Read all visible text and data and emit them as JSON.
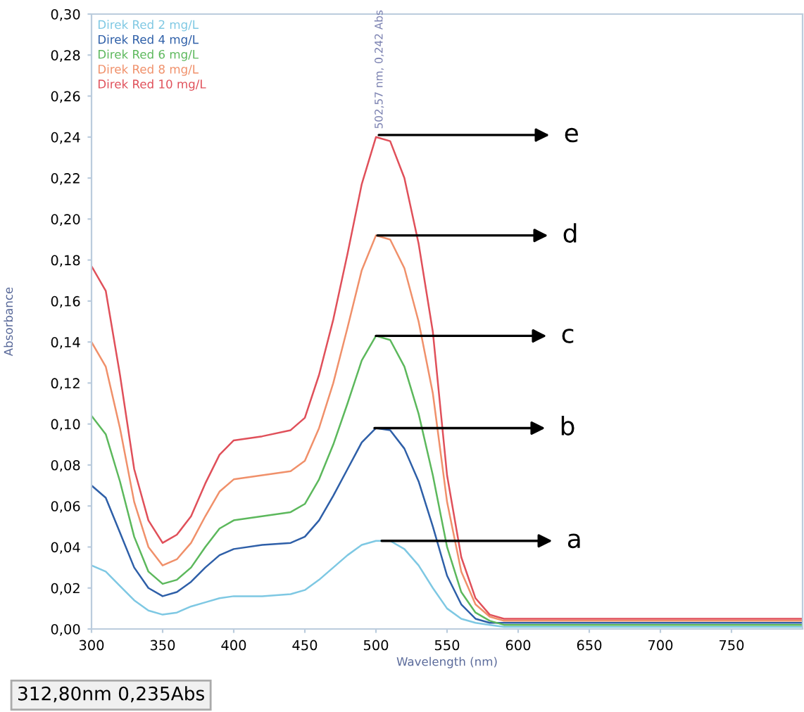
{
  "chart_data": {
    "type": "line",
    "xlabel": "Wavelength (nm)",
    "ylabel": "Absorbance",
    "x": [
      300,
      310,
      320,
      330,
      340,
      350,
      360,
      370,
      380,
      390,
      400,
      420,
      440,
      450,
      460,
      470,
      480,
      490,
      500,
      510,
      520,
      530,
      540,
      550,
      560,
      570,
      580,
      590,
      600,
      650,
      700,
      750,
      800
    ],
    "series": [
      {
        "name": "Direk Red 2 mg/L",
        "color": "#7ec8e3",
        "values": [
          0.031,
          0.028,
          0.021,
          0.014,
          0.009,
          0.007,
          0.008,
          0.011,
          0.013,
          0.015,
          0.016,
          0.016,
          0.017,
          0.019,
          0.024,
          0.03,
          0.036,
          0.041,
          0.043,
          0.043,
          0.039,
          0.031,
          0.02,
          0.01,
          0.005,
          0.003,
          0.002,
          0.001,
          0.001,
          0.001,
          0.001,
          0.001,
          0.001
        ]
      },
      {
        "name": "Direk Red 4 mg/L",
        "color": "#2e5fa8",
        "values": [
          0.07,
          0.064,
          0.047,
          0.03,
          0.02,
          0.016,
          0.018,
          0.023,
          0.03,
          0.036,
          0.039,
          0.041,
          0.042,
          0.045,
          0.053,
          0.065,
          0.078,
          0.091,
          0.098,
          0.097,
          0.088,
          0.072,
          0.05,
          0.026,
          0.012,
          0.005,
          0.003,
          0.003,
          0.003,
          0.003,
          0.003,
          0.003,
          0.003
        ]
      },
      {
        "name": "Direk Red 6 mg/L",
        "color": "#5cb85c",
        "values": [
          0.104,
          0.095,
          0.072,
          0.045,
          0.028,
          0.022,
          0.024,
          0.03,
          0.04,
          0.049,
          0.053,
          0.055,
          0.057,
          0.061,
          0.073,
          0.09,
          0.11,
          0.131,
          0.143,
          0.141,
          0.128,
          0.105,
          0.075,
          0.04,
          0.018,
          0.008,
          0.004,
          0.002,
          0.002,
          0.002,
          0.002,
          0.002,
          0.002
        ]
      },
      {
        "name": "Direk Red 8 mg/L",
        "color": "#f0906a",
        "values": [
          0.14,
          0.128,
          0.098,
          0.062,
          0.04,
          0.031,
          0.034,
          0.042,
          0.055,
          0.067,
          0.073,
          0.075,
          0.077,
          0.082,
          0.098,
          0.12,
          0.147,
          0.175,
          0.192,
          0.19,
          0.176,
          0.15,
          0.115,
          0.062,
          0.028,
          0.012,
          0.006,
          0.004,
          0.004,
          0.004,
          0.004,
          0.004,
          0.004
        ]
      },
      {
        "name": "Direk Red 10 mg/L",
        "color": "#e0505a",
        "values": [
          0.177,
          0.165,
          0.124,
          0.078,
          0.053,
          0.042,
          0.046,
          0.055,
          0.071,
          0.085,
          0.092,
          0.094,
          0.097,
          0.103,
          0.124,
          0.151,
          0.183,
          0.217,
          0.24,
          0.238,
          0.22,
          0.188,
          0.145,
          0.075,
          0.035,
          0.015,
          0.007,
          0.005,
          0.005,
          0.005,
          0.005,
          0.005,
          0.005
        ]
      }
    ],
    "xlim": [
      300,
      800
    ],
    "xticks": [
      300,
      350,
      400,
      450,
      500,
      550,
      600,
      650,
      700,
      750
    ],
    "ylim": [
      0,
      0.3
    ],
    "yticks": [
      {
        "value": 0,
        "label": "0,00"
      },
      {
        "value": 0.02,
        "label": "0,02"
      },
      {
        "value": 0.04,
        "label": "0,04"
      },
      {
        "value": 0.06,
        "label": "0,06"
      },
      {
        "value": 0.08,
        "label": "0,08"
      },
      {
        "value": 0.1,
        "label": "0,10"
      },
      {
        "value": 0.12,
        "label": "0,12"
      },
      {
        "value": 0.14,
        "label": "0,14"
      },
      {
        "value": 0.16,
        "label": "0,16"
      },
      {
        "value": 0.18,
        "label": "0,18"
      },
      {
        "value": 0.2,
        "label": "0,20"
      },
      {
        "value": 0.22,
        "label": "0,22"
      },
      {
        "value": 0.24,
        "label": "0,24"
      },
      {
        "value": 0.26,
        "label": "0,26"
      },
      {
        "value": 0.28,
        "label": "0,28"
      },
      {
        "value": 0.3,
        "label": "0,30"
      }
    ],
    "grid": false,
    "legend": "top left",
    "marker": "none",
    "line_style": "solid",
    "annotations": [
      {
        "text": "502,57 nm, 0,242 Abs",
        "x": 502.57,
        "y": 0.242
      },
      {
        "text": "e",
        "x": 502,
        "y": 0.241
      },
      {
        "text": "d",
        "x": 501,
        "y": 0.192
      },
      {
        "text": "c",
        "x": 500,
        "y": 0.143
      },
      {
        "text": "b",
        "x": 499,
        "y": 0.098
      },
      {
        "text": "a",
        "x": 504,
        "y": 0.043
      },
      "312,80nm 0,235Abs"
    ]
  }
}
